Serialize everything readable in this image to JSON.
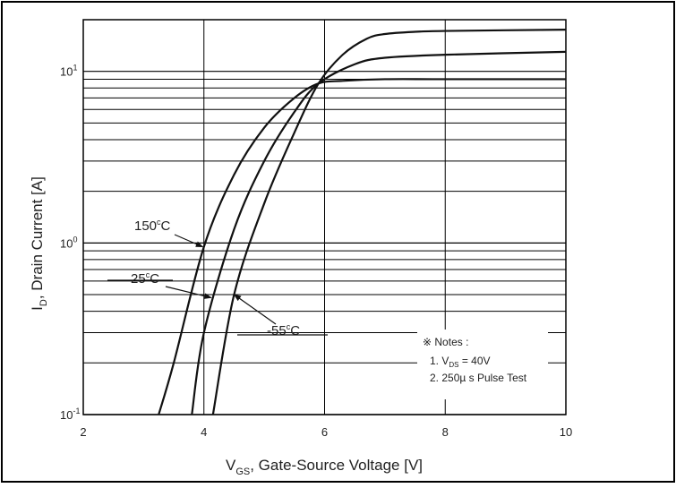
{
  "chart_data": {
    "type": "line",
    "xlabel": {
      "main": "V",
      "sub": "GS",
      "rest": ", Gate-Source Voltage [V]"
    },
    "ylabel": {
      "main": "I",
      "sub": "D",
      "rest": ", Drain Current [A]"
    },
    "xlim": [
      2,
      10
    ],
    "ylim": [
      0.1,
      20
    ],
    "yscale": "log",
    "grid": true,
    "x_ticks": [
      "2",
      "4",
      "6",
      "8",
      "10"
    ],
    "y_ticks": [
      {
        "base": "10",
        "exp": "-1",
        "value": 0.1
      },
      {
        "base": "10",
        "exp": "0",
        "value": 1
      },
      {
        "base": "10",
        "exp": "1",
        "value": 10
      }
    ],
    "series": [
      {
        "name": "150°C",
        "label": "150",
        "x": [
          3.25,
          3.5,
          4.0,
          4.5,
          5.0,
          5.5,
          5.9,
          6.3,
          7.0,
          8.0,
          10.0
        ],
        "y": [
          0.1,
          0.2,
          0.95,
          2.5,
          4.7,
          7.0,
          8.5,
          8.8,
          9.0,
          9.0,
          9.0
        ]
      },
      {
        "name": "25°C",
        "label": "25",
        "x": [
          3.8,
          4.0,
          4.5,
          5.0,
          5.5,
          5.9,
          6.5,
          7.0,
          8.0,
          10.0
        ],
        "y": [
          0.1,
          0.3,
          1.2,
          3.0,
          5.8,
          8.5,
          11.0,
          12.0,
          12.5,
          13.0
        ]
      },
      {
        "name": "-55°C",
        "label": "-55",
        "x": [
          4.15,
          4.5,
          5.0,
          5.5,
          5.9,
          6.3,
          6.7,
          7.0,
          7.5,
          8.0,
          10.0
        ],
        "y": [
          0.1,
          0.5,
          1.7,
          4.4,
          8.5,
          12.5,
          15.5,
          16.5,
          17.0,
          17.2,
          17.5
        ]
      }
    ],
    "annotations": {
      "temp_unit": "C",
      "degree_mark": "c",
      "notes_title": "※ Notes :",
      "note1": {
        "prefix": "1. V",
        "sub": "DS",
        "suffix": " = 40V"
      },
      "note2": "2. 250µ s Pulse Test"
    }
  }
}
